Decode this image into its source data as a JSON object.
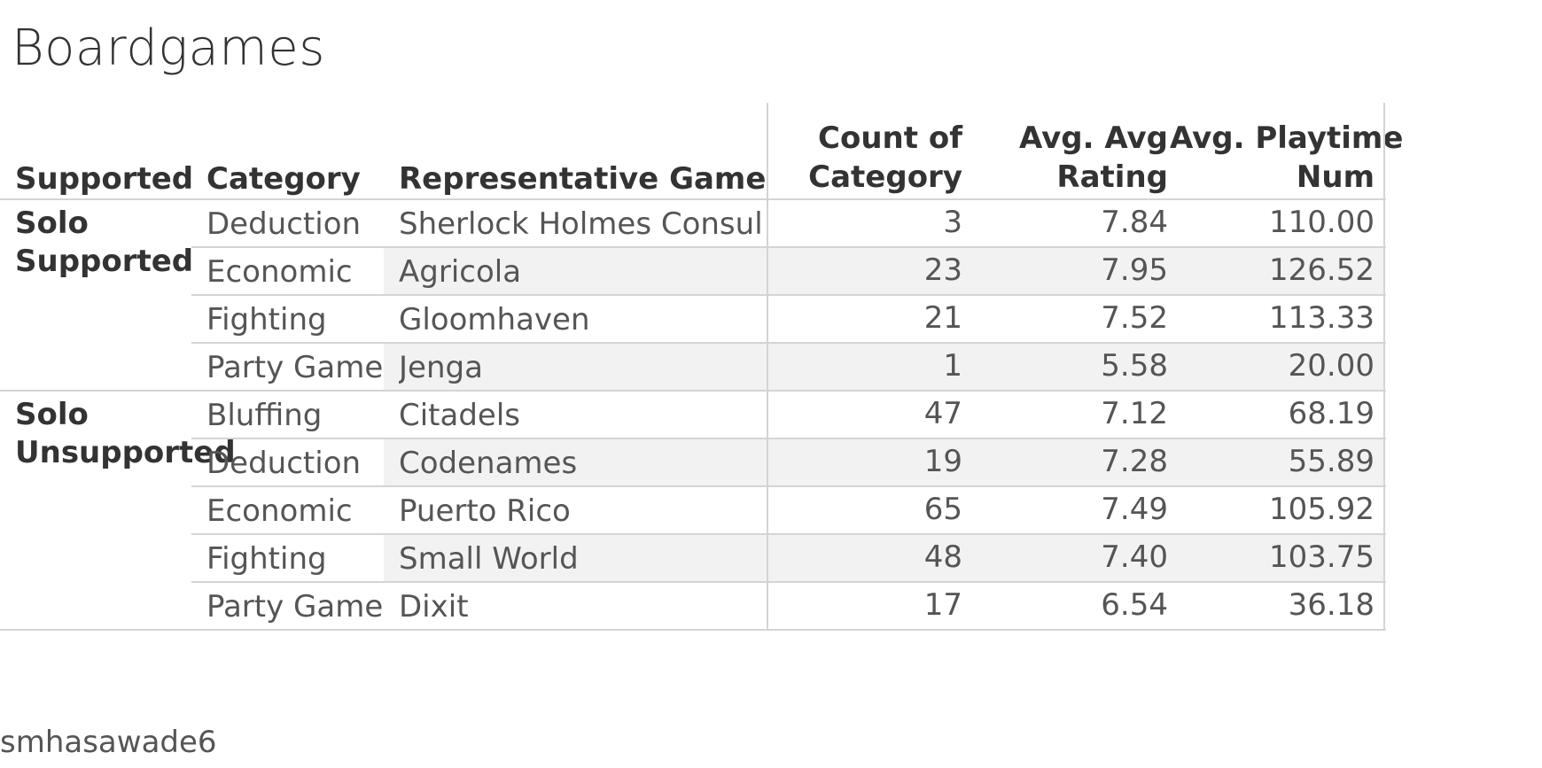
{
  "chart_data": {
    "type": "table",
    "title": "Boardgames",
    "columns": [
      "Supported",
      "Category",
      "Representative Game",
      "Count of Category",
      "Avg. Avg Rating",
      "Avg. Playtime Num"
    ],
    "header": {
      "supported": "Supported",
      "category": "Category",
      "game": "Representative Game",
      "count_l1": "Count of",
      "count_l2": "Category",
      "rating_l1": "Avg. Avg",
      "rating_l2": "Rating",
      "playtime_l1": "Avg. Playtime",
      "playtime_l2": "Num"
    },
    "groups": [
      {
        "name_l1": "Solo",
        "name_l2": "Supported",
        "rows": [
          {
            "category": "Deduction",
            "game": "Sherlock Holmes Consulti..",
            "count": "3",
            "rating": "7.84",
            "playtime": "110.00"
          },
          {
            "category": "Economic",
            "game": "Agricola",
            "count": "23",
            "rating": "7.95",
            "playtime": "126.52"
          },
          {
            "category": "Fighting",
            "game": "Gloomhaven",
            "count": "21",
            "rating": "7.52",
            "playtime": "113.33"
          },
          {
            "category": "Party Game",
            "game": "Jenga",
            "count": "1",
            "rating": "5.58",
            "playtime": "20.00"
          }
        ]
      },
      {
        "name_l1": "Solo",
        "name_l2": "Unsupported",
        "rows": [
          {
            "category": "Bluffing",
            "game": "Citadels",
            "count": "47",
            "rating": "7.12",
            "playtime": "68.19"
          },
          {
            "category": "Deduction",
            "game": "Codenames",
            "count": "19",
            "rating": "7.28",
            "playtime": "55.89"
          },
          {
            "category": "Economic",
            "game": "Puerto Rico",
            "count": "65",
            "rating": "7.49",
            "playtime": "105.92"
          },
          {
            "category": "Fighting",
            "game": "Small World",
            "count": "48",
            "rating": "7.40",
            "playtime": "103.75"
          },
          {
            "category": "Party Game",
            "game": "Dixit",
            "count": "17",
            "rating": "6.54",
            "playtime": "36.18"
          }
        ]
      }
    ]
  },
  "footer": "smhasawade6",
  "colors": {
    "band": "#f2f2f2",
    "line": "#d4d4d4",
    "text": "#555555",
    "header_text": "#333333"
  }
}
